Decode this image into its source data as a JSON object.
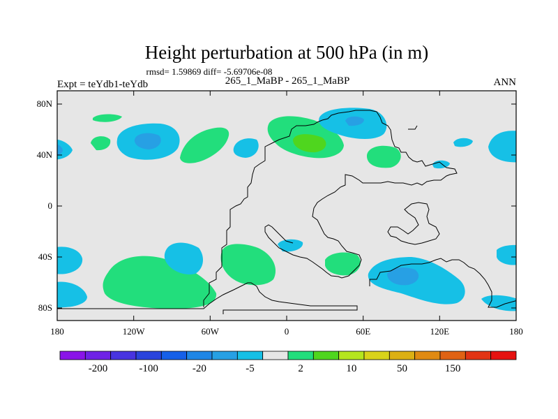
{
  "title": "Height perturbation at 500 hPa (in m)",
  "stats": "rmsd= 1.59869 diff= -5.69706e-08",
  "left_label": "Expt = teYdb1-teYdb",
  "center_label": "265_1_MaBP - 265_1_MaBP",
  "right_label": "ANN",
  "x_ticks": [
    "180",
    "120W",
    "60W",
    "0",
    "60E",
    "120E",
    "180"
  ],
  "y_ticks": [
    "80N",
    "40N",
    "0",
    "40S",
    "80S"
  ],
  "colors": {
    "background_field": "#e6e6e6",
    "green": "#22de7c",
    "light_green": "#4fd61e",
    "cyan": "#16c0e6",
    "blue": "#27a0e4",
    "coast": "#000000"
  },
  "colorbar": {
    "colors": [
      "#8a14e8",
      "#6f22e6",
      "#4834e0",
      "#2a44dc",
      "#1660e8",
      "#1f86e6",
      "#27a0e4",
      "#16c0e6",
      "#e6e6e6",
      "#22de7c",
      "#4fd61e",
      "#b5e61e",
      "#d9d31a",
      "#dcb014",
      "#e08a12",
      "#e06214",
      "#e23414",
      "#e61210"
    ],
    "labels": [
      "-200",
      "-100",
      "-20",
      "-5",
      "2",
      "10",
      "50",
      "150"
    ]
  }
}
